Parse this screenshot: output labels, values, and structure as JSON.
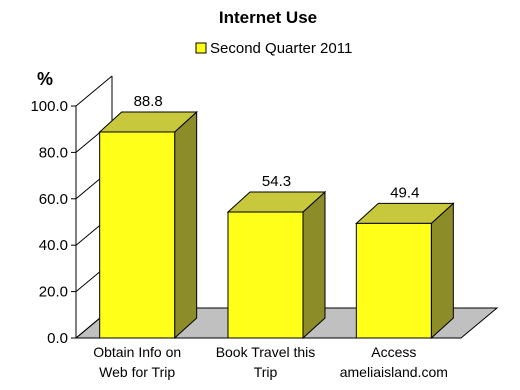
{
  "chart_data": {
    "type": "bar",
    "title": "Internet Use",
    "ylabel": "%",
    "xlabel": "",
    "categories": [
      [
        "Obtain Info on",
        "Web for Trip"
      ],
      [
        "Book Travel this",
        "Trip"
      ],
      [
        "Access",
        "ameliaisland.com"
      ]
    ],
    "series": [
      {
        "name": "Second Quarter 2011",
        "values": [
          88.8,
          54.3,
          49.4
        ]
      }
    ],
    "value_labels": [
      "88.8",
      "54.3",
      "49.4"
    ],
    "ylim": [
      0,
      100
    ],
    "yticks": [
      0,
      20,
      40,
      60,
      80,
      100
    ],
    "ytick_labels": [
      "0.0",
      "20.0",
      "40.0",
      "60.0",
      "80.0",
      "100.0"
    ],
    "legend_position": "top-center",
    "grid": false,
    "style": "3d",
    "colors": {
      "bar_front": "#ffff1a",
      "bar_side": "#8c8c28",
      "bar_top": "#c8c83c",
      "floor": "#c0c0c0",
      "outline": "#000000"
    }
  }
}
